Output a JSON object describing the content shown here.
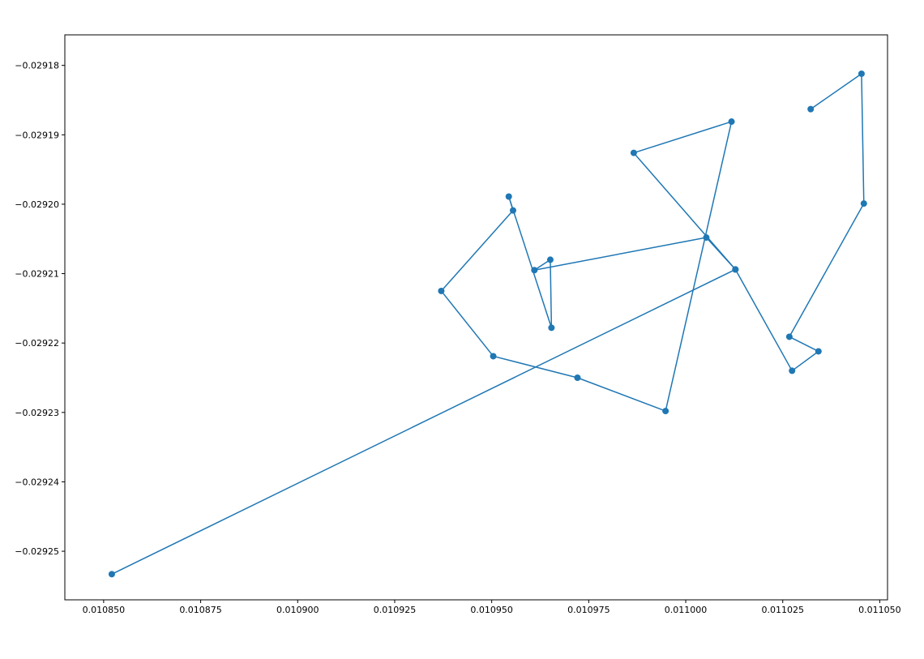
{
  "chart_data": {
    "type": "line",
    "title": "",
    "xlabel": "",
    "ylabel": "",
    "xlim": [
      0.01084,
      0.011052
    ],
    "ylim": [
      -0.029257,
      -0.0291756
    ],
    "x_ticks": [
      0.01085,
      0.010875,
      0.0109,
      0.010925,
      0.01095,
      0.010975,
      0.011,
      0.011025,
      0.01105
    ],
    "x_tick_labels": [
      "0.010850",
      "0.010875",
      "0.010900",
      "0.010925",
      "0.010950",
      "0.010975",
      "0.011000",
      "0.011025",
      "0.011050"
    ],
    "y_ticks": [
      -0.02918,
      -0.02919,
      -0.0292,
      -0.02921,
      -0.02922,
      -0.02923,
      -0.02924,
      -0.02925
    ],
    "y_tick_labels": [
      "−0.02918",
      "−0.02919",
      "−0.02920",
      "−0.02921",
      "−0.02922",
      "−0.02923",
      "−0.02924",
      "−0.02925"
    ],
    "grid": false,
    "colors": {
      "series": "#1f77b4",
      "axes": "#000000",
      "background": "#ffffff"
    },
    "series": [
      {
        "marker": "circle",
        "points": [
          {
            "x": 0.0110322,
            "y": -0.0291863
          },
          {
            "x": 0.0110453,
            "y": -0.0291812
          },
          {
            "x": 0.0110459,
            "y": -0.0291999
          },
          {
            "x": 0.0110267,
            "y": -0.0292191
          },
          {
            "x": 0.0110342,
            "y": -0.0292212
          },
          {
            "x": 0.0110274,
            "y": -0.029224
          },
          {
            "x": 0.0110128,
            "y": -0.0292094
          },
          {
            "x": 0.0109866,
            "y": -0.0291926
          },
          {
            "x": 0.0110118,
            "y": -0.0291881
          },
          {
            "x": 0.0109948,
            "y": -0.0292298
          },
          {
            "x": 0.0109721,
            "y": -0.029225
          },
          {
            "x": 0.0109504,
            "y": -0.0292219
          },
          {
            "x": 0.010937,
            "y": -0.0292125
          },
          {
            "x": 0.0109555,
            "y": -0.0292009
          },
          {
            "x": 0.0109544,
            "y": -0.0291989
          },
          {
            "x": 0.0109654,
            "y": -0.0292178
          },
          {
            "x": 0.0109651,
            "y": -0.029208
          },
          {
            "x": 0.010961,
            "y": -0.0292095
          },
          {
            "x": 0.0110053,
            "y": -0.0292048
          },
          {
            "x": 0.0110128,
            "y": -0.0292094
          },
          {
            "x": 0.0108521,
            "y": -0.0292533
          }
        ]
      }
    ]
  }
}
